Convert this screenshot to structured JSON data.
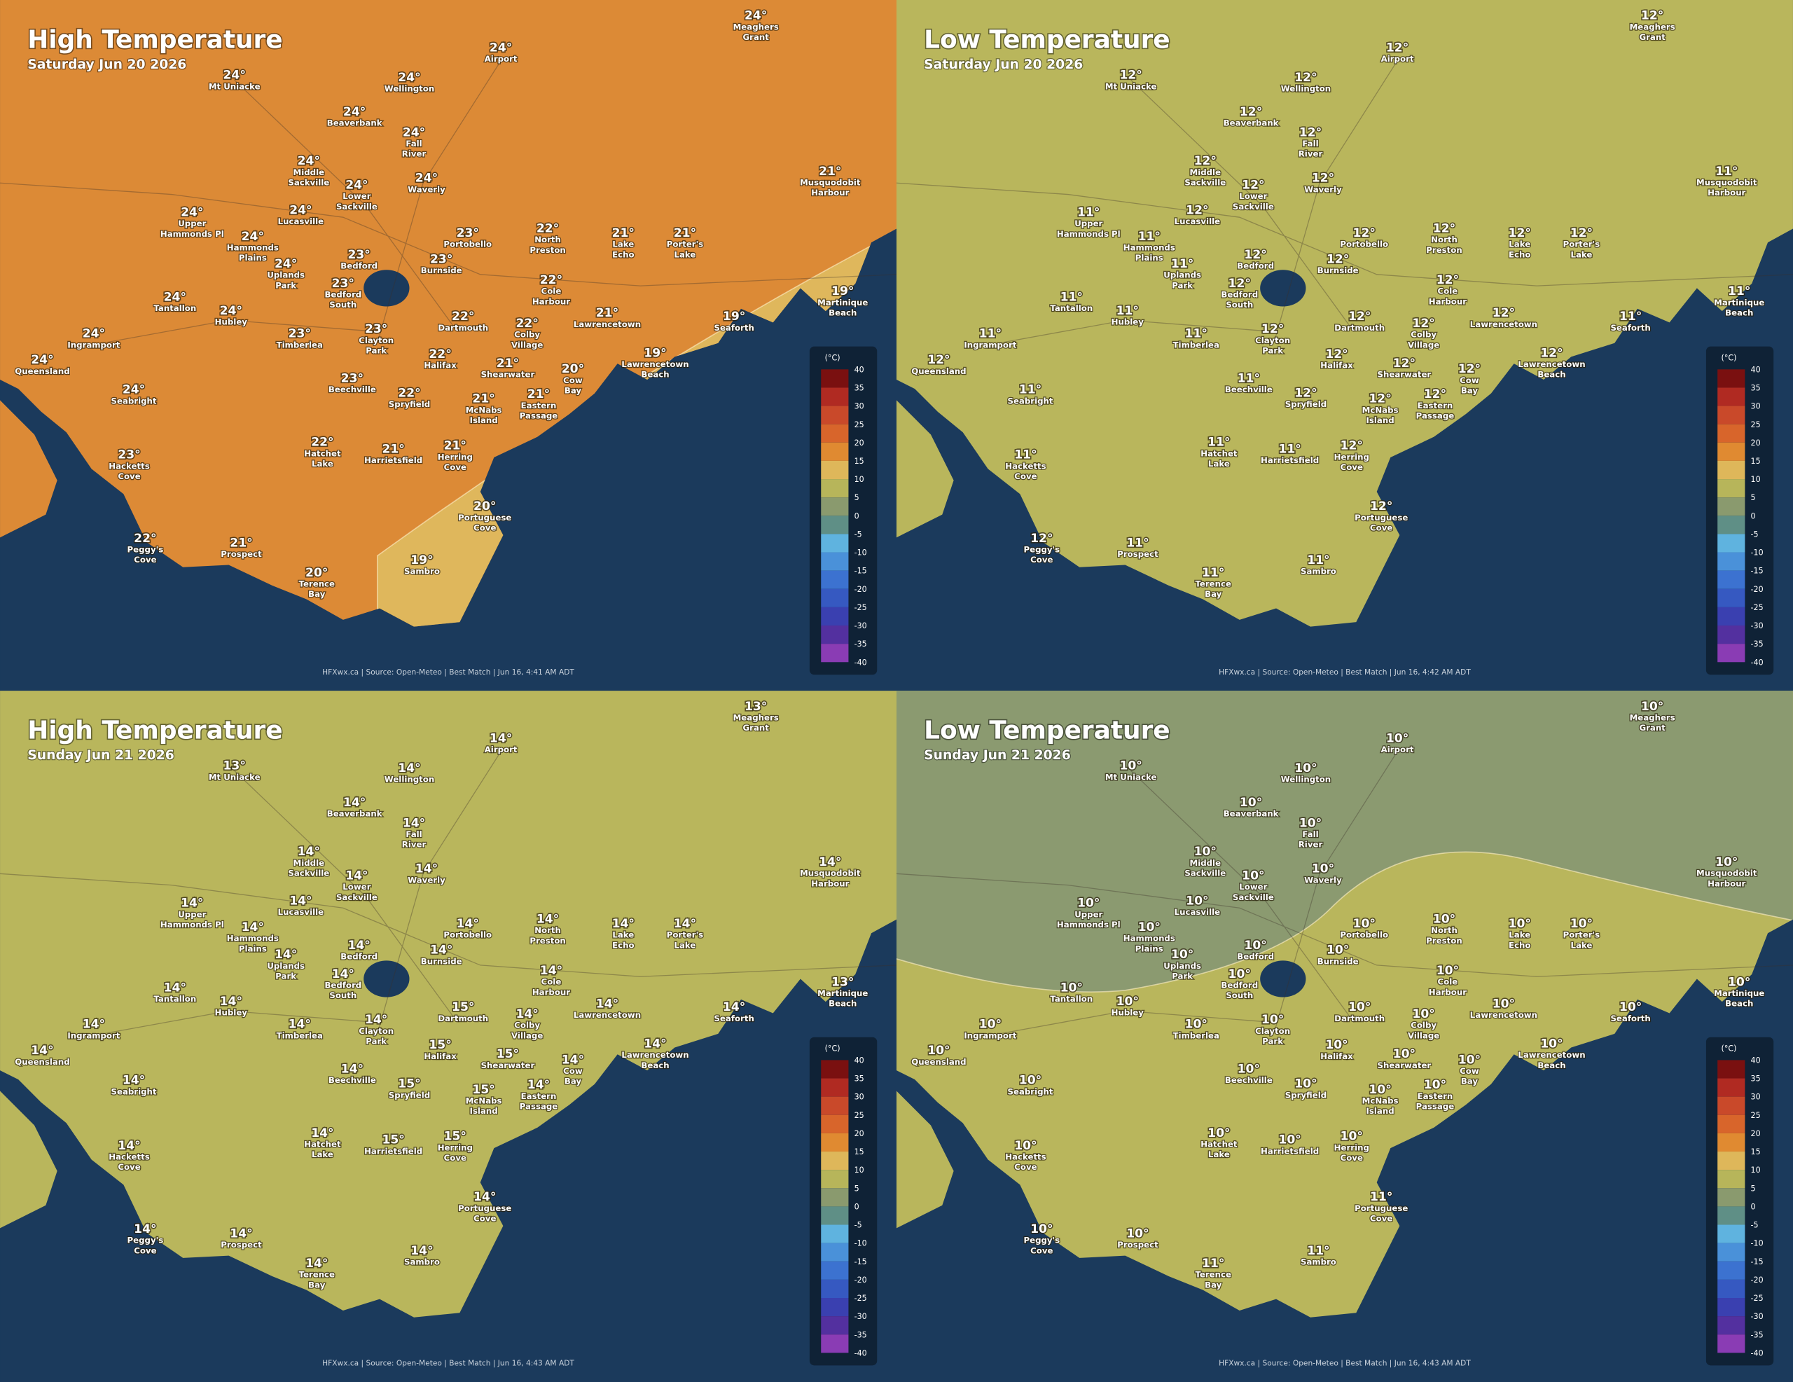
{
  "places": [
    [
      "Meaghers",
      "Grant"
    ],
    [
      "Airport"
    ],
    [
      "Mt Uniacke"
    ],
    [
      "Wellington"
    ],
    [
      "Beaverbank"
    ],
    [
      "Fall",
      "River"
    ],
    [
      "Middle",
      "Sackville"
    ],
    [
      "Lower",
      "Sackville"
    ],
    [
      "Waverly"
    ],
    [
      "Musquodobit",
      "Harbour"
    ],
    [
      "Upper",
      "Hammonds Pl"
    ],
    [
      "Lucasville"
    ],
    [
      "Hammonds",
      "Plains"
    ],
    [
      "Portobello"
    ],
    [
      "North",
      "Preston"
    ],
    [
      "Lake",
      "Echo"
    ],
    [
      "Porter's",
      "Lake"
    ],
    [
      "Uplands",
      "Park"
    ],
    [
      "Bedford"
    ],
    [
      "Burnside"
    ],
    [
      "Bedford",
      "South"
    ],
    [
      "Cole",
      "Harbour"
    ],
    [
      "Tantallon"
    ],
    [
      "Hubley"
    ],
    [
      "Martinique",
      "Beach"
    ],
    [
      "Dartmouth"
    ],
    [
      "Lawrencetown"
    ],
    [
      "Seaforth"
    ],
    [
      "Ingramport"
    ],
    [
      "Timberlea"
    ],
    [
      "Clayton",
      "Park"
    ],
    [
      "Colby",
      "Village"
    ],
    [
      "Queensland"
    ],
    [
      "Halifax"
    ],
    [
      "Lawrencetown",
      "Beach"
    ],
    [
      "Shearwater"
    ],
    [
      "Cow",
      "Bay"
    ],
    [
      "Beechville"
    ],
    [
      "Seabright"
    ],
    [
      "Spryfield"
    ],
    [
      "McNabs",
      "Island"
    ],
    [
      "Eastern",
      "Passage"
    ],
    [
      "Hatchet",
      "Lake"
    ],
    [
      "Harrietsfield"
    ],
    [
      "Herring",
      "Cove"
    ],
    [
      "Hacketts",
      "Cove"
    ],
    [
      "Portuguese",
      "Cove"
    ],
    [
      "Peggy's",
      "Cove"
    ],
    [
      "Prospect"
    ],
    [
      "Sambro"
    ],
    [
      "Terence",
      "Bay"
    ]
  ],
  "panels": [
    {
      "title": "High Temperature",
      "subtitle": "Saturday Jun 20 2026",
      "temps": [
        "24°",
        "24°",
        "24°",
        "24°",
        "24°",
        "24°",
        "24°",
        "24°",
        "24°",
        "21°",
        "24°",
        "24°",
        "24°",
        "23°",
        "22°",
        "21°",
        "21°",
        "24°",
        "23°",
        "23°",
        "23°",
        "22°",
        "24°",
        "24°",
        "19°",
        "22°",
        "21°",
        "19°",
        "24°",
        "23°",
        "23°",
        "22°",
        "24°",
        "22°",
        "19°",
        "21°",
        "20°",
        "23°",
        "24°",
        "22°",
        "21°",
        "21°",
        "22°",
        "21°",
        "21°",
        "23°",
        "20°",
        "22°",
        "21°",
        "19°",
        "20°"
      ],
      "credit": "HFXwx.ca | Source: Open-Meteo | Best Match | Jun 16, 4:41 AM ADT"
    },
    {
      "title": "Low Temperature",
      "subtitle": "Saturday Jun 20 2026",
      "temps": [
        "12°",
        "12°",
        "12°",
        "12°",
        "12°",
        "12°",
        "12°",
        "12°",
        "12°",
        "11°",
        "11°",
        "12°",
        "11°",
        "12°",
        "12°",
        "12°",
        "12°",
        "11°",
        "12°",
        "12°",
        "12°",
        "12°",
        "11°",
        "11°",
        "11°",
        "12°",
        "12°",
        "11°",
        "11°",
        "11°",
        "12°",
        "12°",
        "12°",
        "12°",
        "12°",
        "12°",
        "12°",
        "11°",
        "11°",
        "12°",
        "12°",
        "12°",
        "11°",
        "11°",
        "12°",
        "11°",
        "12°",
        "12°",
        "11°",
        "11°",
        "11°"
      ],
      "credit": "HFXwx.ca | Source: Open-Meteo | Best Match | Jun 16, 4:42 AM ADT"
    },
    {
      "title": "High Temperature",
      "subtitle": "Sunday Jun 21 2026",
      "temps": [
        "13°",
        "14°",
        "13°",
        "14°",
        "14°",
        "14°",
        "14°",
        "14°",
        "14°",
        "14°",
        "14°",
        "14°",
        "14°",
        "14°",
        "14°",
        "14°",
        "14°",
        "14°",
        "14°",
        "14°",
        "14°",
        "14°",
        "14°",
        "14°",
        "13°",
        "15°",
        "14°",
        "14°",
        "14°",
        "14°",
        "14°",
        "14°",
        "14°",
        "15°",
        "14°",
        "15°",
        "14°",
        "14°",
        "14°",
        "15°",
        "15°",
        "14°",
        "14°",
        "15°",
        "15°",
        "14°",
        "14°",
        "14°",
        "14°",
        "14°",
        "14°"
      ],
      "credit": "HFXwx.ca | Source: Open-Meteo | Best Match | Jun 16, 4:43 AM ADT"
    },
    {
      "title": "Low Temperature",
      "subtitle": "Sunday Jun 21 2026",
      "temps": [
        "10°",
        "10°",
        "10°",
        "10°",
        "10°",
        "10°",
        "10°",
        "10°",
        "10°",
        "10°",
        "10°",
        "10°",
        "10°",
        "10°",
        "10°",
        "10°",
        "10°",
        "10°",
        "10°",
        "10°",
        "10°",
        "10°",
        "10°",
        "10°",
        "10°",
        "10°",
        "10°",
        "10°",
        "10°",
        "10°",
        "10°",
        "10°",
        "10°",
        "10°",
        "10°",
        "10°",
        "10°",
        "10°",
        "10°",
        "10°",
        "10°",
        "10°",
        "10°",
        "10°",
        "10°",
        "10°",
        "11°",
        "10°",
        "10°",
        "11°",
        "11°"
      ],
      "credit": "HFXwx.ca | Source: Open-Meteo | Best Match | Jun 16, 4:43 AM ADT"
    }
  ],
  "legend": {
    "unit": "(°C)",
    "ticks": [
      40,
      35,
      30,
      25,
      20,
      15,
      10,
      5,
      0,
      -5,
      -10,
      -15,
      -20,
      -25,
      -30,
      -35,
      -40
    ]
  }
}
